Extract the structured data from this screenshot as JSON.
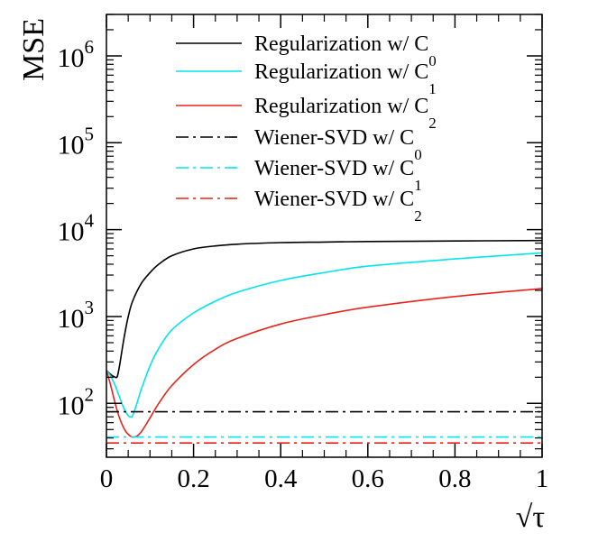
{
  "chart_data": {
    "type": "line",
    "title": "",
    "xlabel": "√τ",
    "ylabel": "MSE",
    "xlim": [
      0,
      1
    ],
    "ylim": [
      24,
      3000000
    ],
    "y_scale": "log",
    "grid": false,
    "legend_position": "top-right",
    "x_ticks": [
      {
        "value": 0,
        "label": "0"
      },
      {
        "value": 0.2,
        "label": "0.2"
      },
      {
        "value": 0.4,
        "label": "0.4"
      },
      {
        "value": 0.6,
        "label": "0.6"
      },
      {
        "value": 0.8,
        "label": "0.8"
      },
      {
        "value": 1,
        "label": "1"
      }
    ],
    "y_ticks": [
      {
        "value": 100,
        "base": "10",
        "exp": "2"
      },
      {
        "value": 1000,
        "base": "10",
        "exp": "3"
      },
      {
        "value": 10000,
        "base": "10",
        "exp": "4"
      },
      {
        "value": 100000,
        "base": "10",
        "exp": "5"
      },
      {
        "value": 1000000,
        "base": "10",
        "exp": "6"
      }
    ],
    "series": [
      {
        "name": "Regularization w/ C0",
        "label_main": "Regularization w/ C",
        "label_sub": "0",
        "color": "#000000",
        "style": "solid",
        "x": [
          0,
          0.01,
          0.02,
          0.025,
          0.03,
          0.04,
          0.05,
          0.06,
          0.08,
          0.1,
          0.12,
          0.15,
          0.2,
          0.25,
          0.3,
          0.4,
          0.5,
          0.6,
          0.8,
          1.0
        ],
        "y": [
          240,
          215,
          200,
          205,
          270,
          550,
          1000,
          1500,
          2400,
          3200,
          4000,
          5000,
          6000,
          6500,
          6800,
          7100,
          7200,
          7300,
          7400,
          7500
        ]
      },
      {
        "name": "Regularization w/ C1",
        "label_main": "Regularization w/ C",
        "label_sub": "1",
        "color": "#00e5ee",
        "style": "solid",
        "x": [
          0,
          0.01,
          0.02,
          0.03,
          0.04,
          0.05,
          0.055,
          0.06,
          0.07,
          0.08,
          0.1,
          0.12,
          0.15,
          0.2,
          0.25,
          0.3,
          0.4,
          0.5,
          0.6,
          0.8,
          1.0
        ],
        "y": [
          240,
          205,
          160,
          118,
          88,
          72,
          70,
          72,
          100,
          145,
          270,
          430,
          700,
          1100,
          1500,
          1900,
          2600,
          3200,
          3800,
          4600,
          5400
        ]
      },
      {
        "name": "Regularization w/ C2",
        "label_main": "Regularization w/ C",
        "label_sub": "2",
        "color": "#e8231b",
        "style": "solid",
        "x": [
          0,
          0.01,
          0.02,
          0.03,
          0.04,
          0.05,
          0.06,
          0.07,
          0.08,
          0.1,
          0.12,
          0.15,
          0.2,
          0.25,
          0.3,
          0.4,
          0.5,
          0.6,
          0.8,
          1.0
        ],
        "y": [
          240,
          160,
          100,
          68,
          52,
          44,
          41,
          42,
          47,
          68,
          100,
          160,
          280,
          420,
          560,
          820,
          1050,
          1280,
          1700,
          2100
        ]
      },
      {
        "name": "Wiener-SVD w/ C0",
        "label_main": "Wiener-SVD w/ C",
        "label_sub": "0",
        "color": "#000000",
        "style": "dashdot",
        "x": [
          0,
          1
        ],
        "y": [
          80,
          80
        ]
      },
      {
        "name": "Wiener-SVD w/ C1",
        "label_main": "Wiener-SVD w/ C",
        "label_sub": "1",
        "color": "#00e5ee",
        "style": "dashdot",
        "x": [
          0,
          1
        ],
        "y": [
          41,
          41
        ]
      },
      {
        "name": "Wiener-SVD w/ C2",
        "label_main": "Wiener-SVD w/ C",
        "label_sub": "2",
        "color": "#e8231b",
        "style": "dashdot",
        "x": [
          0,
          1
        ],
        "y": [
          35,
          35
        ]
      }
    ]
  }
}
